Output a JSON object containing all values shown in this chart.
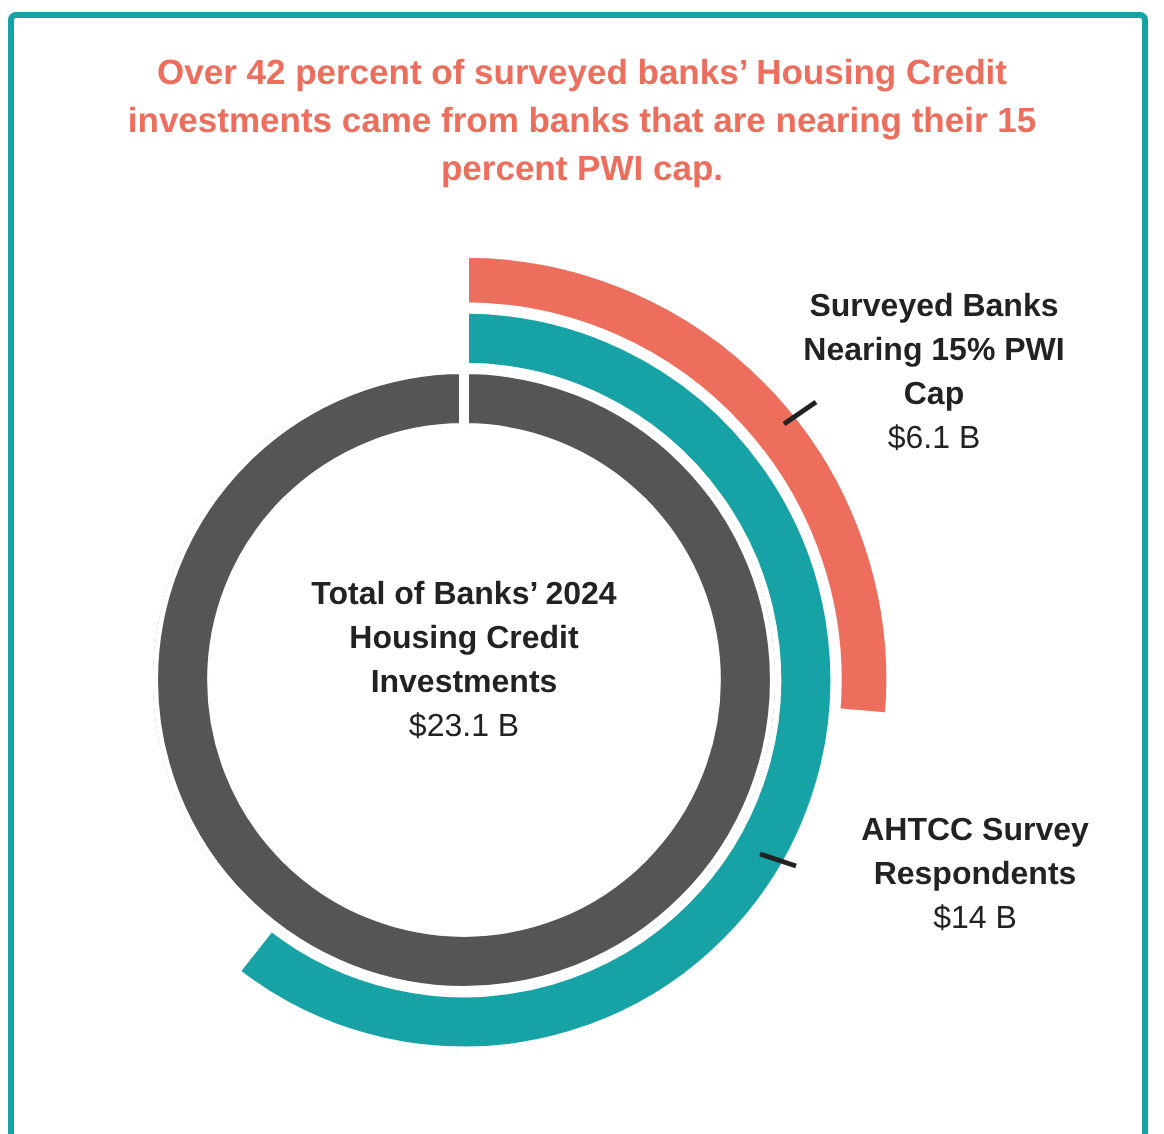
{
  "chart_data": {
    "type": "other",
    "title": "Over 42 percent of surveyed banks’ Housing Credit investments came from banks that are nearing their 15 percent PWI cap.",
    "categories": [
      "Total of Banks’ 2024 Housing Credit Investments",
      "AHTCC Survey Respondents",
      "Surveyed Banks Nearing 15% PWI Cap"
    ],
    "values": [
      23.1,
      14,
      6.1
    ],
    "colors": [
      "#555555",
      "#17a3a6",
      "#ee6e5d"
    ],
    "value_labels": [
      "$23.1 B",
      "$14 B",
      "$6.1 B"
    ]
  }
}
